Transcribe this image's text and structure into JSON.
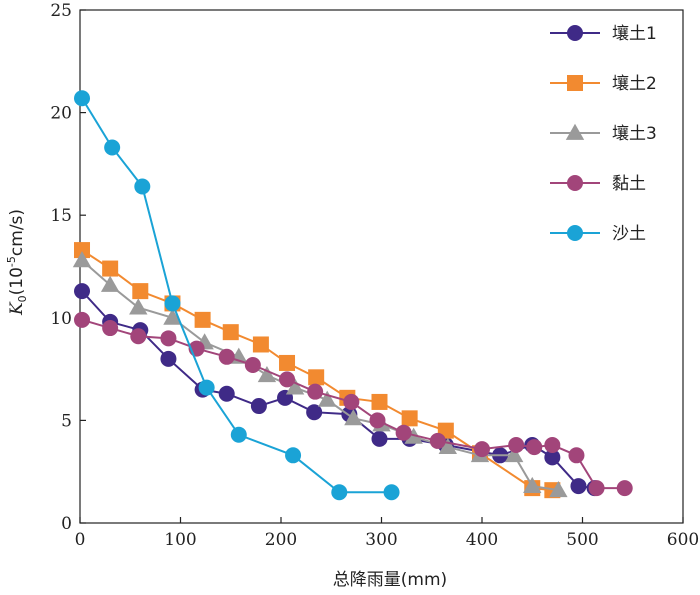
{
  "chart_data": {
    "type": "line",
    "xlabel": "总降雨量(mm)",
    "ylabel_main": "K",
    "ylabel_sub": "0",
    "ylabel_rest": "(10",
    "ylabel_exp": "-5",
    "ylabel_unit": "cm/s)",
    "xlim": [
      0,
      600
    ],
    "ylim": [
      0,
      25
    ],
    "xticks": [
      0,
      100,
      200,
      300,
      400,
      500,
      600
    ],
    "yticks": [
      0,
      5,
      10,
      15,
      20,
      25
    ],
    "grid": false,
    "legend_position": "top-right",
    "series": [
      {
        "name": "壤土1",
        "color": "#3f2a87",
        "marker": "circle",
        "x": [
          2,
          30,
          60,
          88,
          122,
          146,
          178,
          204,
          233,
          268,
          298,
          328,
          364,
          418,
          450,
          470,
          496,
          512
        ],
        "y": [
          11.3,
          9.8,
          9.4,
          8.0,
          6.5,
          6.3,
          5.7,
          6.1,
          5.4,
          5.3,
          4.1,
          4.1,
          3.8,
          3.3,
          3.8,
          3.2,
          1.8,
          1.7
        ]
      },
      {
        "name": "壤土2",
        "color": "#f28a30",
        "marker": "square",
        "x": [
          2,
          30,
          60,
          92,
          122,
          150,
          180,
          206,
          235,
          266,
          298,
          328,
          364,
          398,
          450,
          470
        ],
        "y": [
          13.3,
          12.4,
          11.3,
          10.7,
          9.9,
          9.3,
          8.7,
          7.8,
          7.1,
          6.1,
          5.9,
          5.1,
          4.5,
          3.4,
          1.7,
          1.6
        ]
      },
      {
        "name": "壤土3",
        "color": "#9a9a9a",
        "marker": "triangle",
        "x": [
          2,
          30,
          58,
          92,
          124,
          158,
          186,
          214,
          246,
          272,
          300,
          332,
          366,
          398,
          432,
          450,
          476
        ],
        "y": [
          12.8,
          11.6,
          10.5,
          10.0,
          8.8,
          8.1,
          7.2,
          6.6,
          6.0,
          5.1,
          4.8,
          4.2,
          3.7,
          3.3,
          3.3,
          1.8,
          1.6
        ]
      },
      {
        "name": "黏土",
        "color": "#a2457a",
        "marker": "circle",
        "x": [
          2,
          30,
          58,
          88,
          116,
          146,
          172,
          206,
          234,
          270,
          296,
          322,
          356,
          400,
          434,
          452,
          470,
          494,
          514,
          542
        ],
        "y": [
          9.9,
          9.5,
          9.1,
          9.0,
          8.5,
          8.1,
          7.7,
          7.0,
          6.4,
          5.9,
          5.0,
          4.4,
          4.0,
          3.6,
          3.8,
          3.7,
          3.8,
          3.3,
          1.7,
          1.7
        ]
      },
      {
        "name": "沙土",
        "color": "#1aa3d6",
        "marker": "circle",
        "x": [
          2,
          32,
          62,
          92,
          126,
          158,
          212,
          258,
          310
        ],
        "y": [
          20.7,
          18.3,
          16.4,
          10.7,
          6.6,
          4.3,
          3.3,
          1.5,
          1.5
        ]
      }
    ]
  }
}
